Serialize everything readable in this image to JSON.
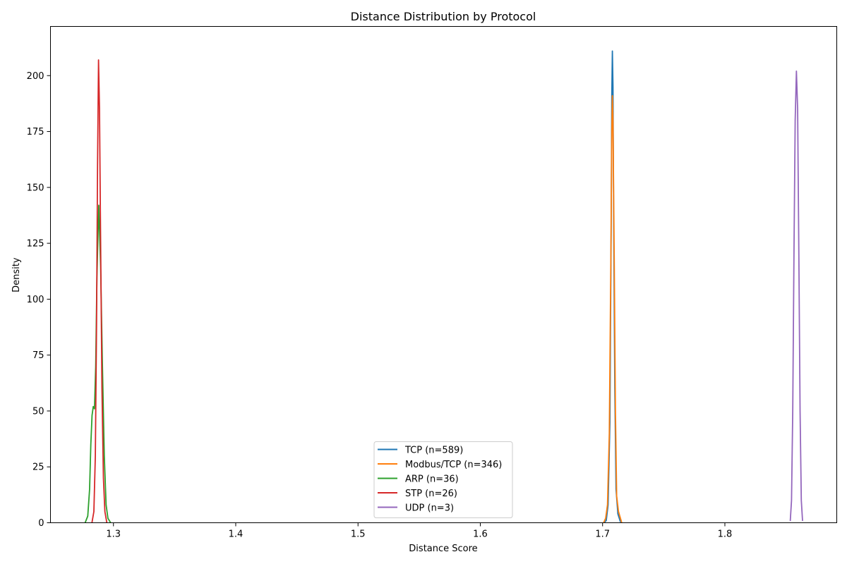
{
  "chart_data": {
    "type": "line",
    "title": "Distance Distribution by Protocol",
    "xlabel": "Distance Score",
    "ylabel": "Density",
    "xlim": [
      1.2485,
      1.8915
    ],
    "ylim": [
      0,
      222
    ],
    "xticks": [
      1.3,
      1.4,
      1.5,
      1.6,
      1.7,
      1.8
    ],
    "xtick_labels": [
      "1.3",
      "1.4",
      "1.5",
      "1.6",
      "1.7",
      "1.8"
    ],
    "yticks": [
      0,
      25,
      50,
      75,
      100,
      125,
      150,
      175,
      200
    ],
    "ytick_labels": [
      "0",
      "25",
      "50",
      "75",
      "100",
      "125",
      "150",
      "175",
      "200"
    ],
    "grid": false,
    "legend_position": "lower-center",
    "series": [
      {
        "name": "TCP (n=589)",
        "color": "#1f77b4",
        "points": [
          [
            1.7015,
            0.2
          ],
          [
            1.703,
            1
          ],
          [
            1.7045,
            8
          ],
          [
            1.706,
            45
          ],
          [
            1.707,
            130
          ],
          [
            1.7075,
            190
          ],
          [
            1.708,
            211
          ],
          [
            1.7085,
            195
          ],
          [
            1.709,
            140
          ],
          [
            1.71,
            60
          ],
          [
            1.711,
            15
          ],
          [
            1.7125,
            4
          ],
          [
            1.7145,
            0.5
          ]
        ]
      },
      {
        "name": "Modbus/TCP (n=346)",
        "color": "#ff7f0e",
        "points": [
          [
            1.701,
            0.2
          ],
          [
            1.7025,
            2
          ],
          [
            1.704,
            8
          ],
          [
            1.7055,
            40
          ],
          [
            1.7068,
            120
          ],
          [
            1.7075,
            175
          ],
          [
            1.708,
            191
          ],
          [
            1.7085,
            180
          ],
          [
            1.7095,
            120
          ],
          [
            1.7105,
            50
          ],
          [
            1.7115,
            12
          ],
          [
            1.713,
            5
          ],
          [
            1.7155,
            0.3
          ]
        ]
      },
      {
        "name": "ARP (n=36)",
        "color": "#2ca02c",
        "points": [
          [
            1.277,
            0.2
          ],
          [
            1.279,
            3
          ],
          [
            1.2805,
            15
          ],
          [
            1.2815,
            35
          ],
          [
            1.2825,
            48
          ],
          [
            1.2835,
            52
          ],
          [
            1.2845,
            51
          ],
          [
            1.2855,
            70
          ],
          [
            1.2865,
            110
          ],
          [
            1.288,
            142
          ],
          [
            1.2895,
            115
          ],
          [
            1.291,
            70
          ],
          [
            1.2925,
            30
          ],
          [
            1.294,
            8
          ],
          [
            1.2955,
            2
          ],
          [
            1.2975,
            0.2
          ]
        ]
      },
      {
        "name": "STP (n=26)",
        "color": "#d62728",
        "points": [
          [
            1.2825,
            0.3
          ],
          [
            1.284,
            5
          ],
          [
            1.2852,
            30
          ],
          [
            1.2862,
            90
          ],
          [
            1.287,
            160
          ],
          [
            1.2878,
            207
          ],
          [
            1.2886,
            185
          ],
          [
            1.2896,
            120
          ],
          [
            1.2906,
            60
          ],
          [
            1.2918,
            20
          ],
          [
            1.293,
            5
          ],
          [
            1.2945,
            0.3
          ]
        ]
      },
      {
        "name": "UDP (n=3)",
        "color": "#9467bd",
        "points": [
          [
            1.8535,
            1
          ],
          [
            1.8545,
            10
          ],
          [
            1.8555,
            50
          ],
          [
            1.8565,
            120
          ],
          [
            1.8575,
            180
          ],
          [
            1.8585,
            202
          ],
          [
            1.8595,
            185
          ],
          [
            1.8605,
            120
          ],
          [
            1.8615,
            50
          ],
          [
            1.8625,
            10
          ],
          [
            1.8635,
            1
          ]
        ]
      }
    ]
  }
}
